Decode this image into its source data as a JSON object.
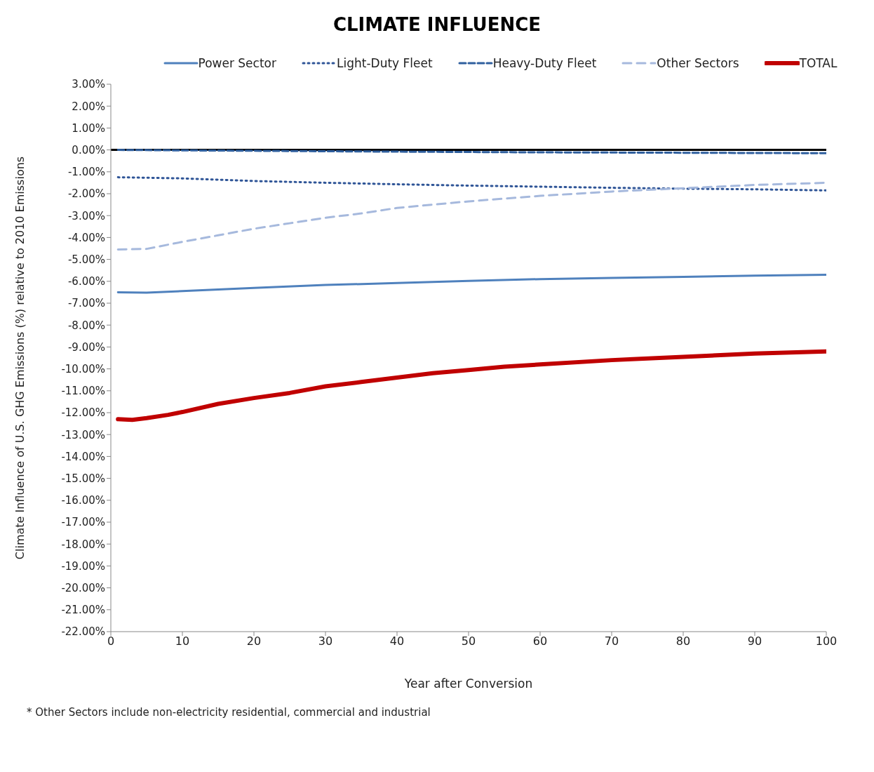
{
  "chart_data": {
    "type": "line",
    "title": "CLIMATE INFLUENCE",
    "xlabel": "Year after Conversion",
    "ylabel": "Climate Influence of U.S. GHG Emissions (%) relative to 2010 Emissions",
    "annotations": [
      "* Other Sectors include non-electricity residential, commercial and industrial"
    ],
    "legend": "top",
    "grid": false,
    "marker": "none",
    "xlim": [
      0,
      100
    ],
    "xticks": [
      0,
      10,
      20,
      30,
      40,
      50,
      60,
      70,
      80,
      90,
      100
    ],
    "ylim": [
      -22,
      3
    ],
    "yticks": [
      {
        "value": 3,
        "label": "3.00%"
      },
      {
        "value": 2,
        "label": "2.00%"
      },
      {
        "value": 1,
        "label": "1.00%"
      },
      {
        "value": 0,
        "label": "0.00%"
      },
      {
        "value": -1,
        "label": "-1.00%"
      },
      {
        "value": -2,
        "label": "-2.00%"
      },
      {
        "value": -3,
        "label": "-3.00%"
      },
      {
        "value": -4,
        "label": "-4.00%"
      },
      {
        "value": -5,
        "label": "-5.00%"
      },
      {
        "value": -6,
        "label": "-6.00%"
      },
      {
        "value": -7,
        "label": "-7.00%"
      },
      {
        "value": -8,
        "label": "-8.00%"
      },
      {
        "value": -9,
        "label": "-9.00%"
      },
      {
        "value": -10,
        "label": "-10.00%"
      },
      {
        "value": -11,
        "label": "-11.00%"
      },
      {
        "value": -12,
        "label": "-12.00%"
      },
      {
        "value": -13,
        "label": "-13.00%"
      },
      {
        "value": -14,
        "label": "-14.00%"
      },
      {
        "value": -15,
        "label": "-15.00%"
      },
      {
        "value": -16,
        "label": "-16.00%"
      },
      {
        "value": -17,
        "label": "-17.00%"
      },
      {
        "value": -18,
        "label": "-18.00%"
      },
      {
        "value": -19,
        "label": "-19.00%"
      },
      {
        "value": -20,
        "label": "-20.00%"
      },
      {
        "value": -21,
        "label": "-21.00%"
      },
      {
        "value": -22,
        "label": "-22.00%"
      }
    ],
    "ref_lines": [
      {
        "axis": "y",
        "value": 0,
        "color": "#000000"
      }
    ],
    "series": [
      {
        "name": "Power Sector",
        "color": "#4f81bd",
        "line_style": "solid",
        "x": [
          1,
          5,
          10,
          20,
          30,
          40,
          50,
          60,
          70,
          80,
          90,
          100
        ],
        "values": [
          -6.5,
          -6.52,
          -6.45,
          -6.3,
          -6.17,
          -6.08,
          -5.98,
          -5.9,
          -5.85,
          -5.8,
          -5.74,
          -5.7
        ]
      },
      {
        "name": "Light-Duty Fleet",
        "color": "#2f5597",
        "line_style": "dotted",
        "x": [
          1,
          10,
          20,
          30,
          40,
          50,
          60,
          70,
          80,
          90,
          100
        ],
        "values": [
          -1.25,
          -1.3,
          -1.42,
          -1.5,
          -1.57,
          -1.63,
          -1.68,
          -1.73,
          -1.77,
          -1.8,
          -1.85
        ]
      },
      {
        "name": "Heavy-Duty Fleet",
        "color": "#2f5f9e",
        "line_style": "dashed",
        "x": [
          1,
          10,
          20,
          40,
          60,
          80,
          100
        ],
        "values": [
          0.0,
          -0.02,
          -0.04,
          -0.08,
          -0.11,
          -0.13,
          -0.15
        ]
      },
      {
        "name": "Other Sectors",
        "color": "#a6b9dd",
        "line_style": "dashed",
        "x": [
          1,
          5,
          10,
          15,
          20,
          25,
          30,
          35,
          40,
          50,
          60,
          70,
          80,
          90,
          100
        ],
        "values": [
          -4.55,
          -4.52,
          -4.2,
          -3.9,
          -3.6,
          -3.35,
          -3.1,
          -2.9,
          -2.65,
          -2.35,
          -2.1,
          -1.9,
          -1.75,
          -1.6,
          -1.5
        ]
      },
      {
        "name": "TOTAL",
        "color": "#c00000",
        "line_style": "solid",
        "x": [
          1,
          3,
          5,
          8,
          10,
          15,
          20,
          25,
          30,
          35,
          40,
          45,
          50,
          55,
          60,
          70,
          80,
          90,
          100
        ],
        "values": [
          -12.3,
          -12.33,
          -12.25,
          -12.1,
          -11.97,
          -11.6,
          -11.33,
          -11.1,
          -10.8,
          -10.6,
          -10.4,
          -10.2,
          -10.05,
          -9.9,
          -9.8,
          -9.6,
          -9.45,
          -9.3,
          -9.2
        ]
      }
    ]
  }
}
